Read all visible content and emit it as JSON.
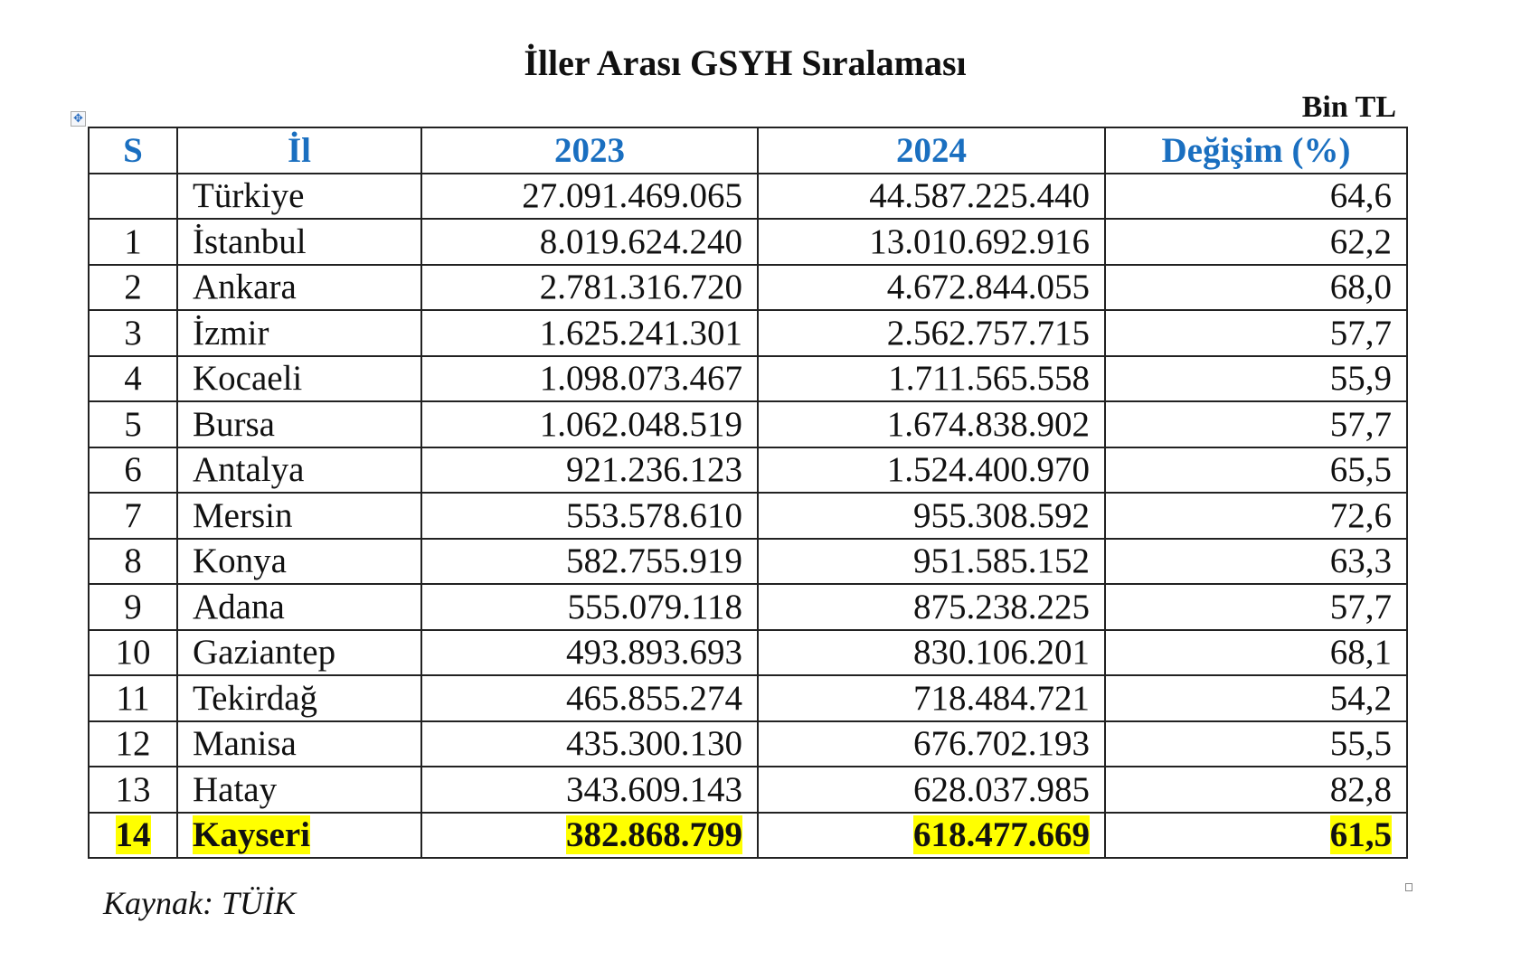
{
  "title": "İller Arası GSYH Sıralaması",
  "unit": "Bin TL",
  "highlight_color": "#ffff00",
  "header_color": "#1a6fc0",
  "columns": [
    "S",
    "İl",
    "2023",
    "2024",
    "Değişim (%)"
  ],
  "rows": [
    {
      "rank": "",
      "province": "Türkiye",
      "y2023": "27.091.469.065",
      "y2024": "44.587.225.440",
      "change": "64,6"
    },
    {
      "rank": "1",
      "province": "İstanbul",
      "y2023": "8.019.624.240",
      "y2024": "13.010.692.916",
      "change": "62,2"
    },
    {
      "rank": "2",
      "province": "Ankara",
      "y2023": "2.781.316.720",
      "y2024": "4.672.844.055",
      "change": "68,0"
    },
    {
      "rank": "3",
      "province": "İzmir",
      "y2023": "1.625.241.301",
      "y2024": "2.562.757.715",
      "change": "57,7"
    },
    {
      "rank": "4",
      "province": "Kocaeli",
      "y2023": "1.098.073.467",
      "y2024": "1.711.565.558",
      "change": "55,9"
    },
    {
      "rank": "5",
      "province": "Bursa",
      "y2023": "1.062.048.519",
      "y2024": "1.674.838.902",
      "change": "57,7"
    },
    {
      "rank": "6",
      "province": "Antalya",
      "y2023": "921.236.123",
      "y2024": "1.524.400.970",
      "change": "65,5"
    },
    {
      "rank": "7",
      "province": "Mersin",
      "y2023": "553.578.610",
      "y2024": "955.308.592",
      "change": "72,6"
    },
    {
      "rank": "8",
      "province": "Konya",
      "y2023": "582.755.919",
      "y2024": "951.585.152",
      "change": "63,3"
    },
    {
      "rank": "9",
      "province": "Adana",
      "y2023": "555.079.118",
      "y2024": "875.238.225",
      "change": "57,7"
    },
    {
      "rank": "10",
      "province": "Gaziantep",
      "y2023": "493.893.693",
      "y2024": "830.106.201",
      "change": "68,1"
    },
    {
      "rank": "11",
      "province": "Tekirdağ",
      "y2023": "465.855.274",
      "y2024": "718.484.721",
      "change": "54,2"
    },
    {
      "rank": "12",
      "province": "Manisa",
      "y2023": "435.300.130",
      "y2024": "676.702.193",
      "change": "55,5"
    },
    {
      "rank": "13",
      "province": "Hatay",
      "y2023": "343.609.143",
      "y2024": "628.037.985",
      "change": "82,8"
    },
    {
      "rank": "14",
      "province": "Kayseri",
      "y2023": "382.868.799",
      "y2024": "618.477.669",
      "change": "61,5",
      "highlighted": true
    }
  ],
  "source": "Kaynak: TÜİK"
}
